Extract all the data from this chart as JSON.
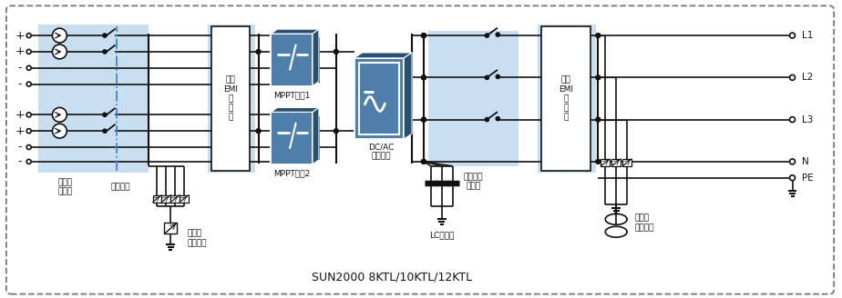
{
  "bg_color": "#ffffff",
  "border_color": "#666666",
  "light_blue": "#a8c8e8",
  "box_blue": "#4d7faa",
  "box_dark": "#2a5070",
  "line_color": "#111111",
  "blue_dash": "#4488cc",
  "title_text": "SUN2000 8KTL/10KTL/12KTL",
  "label_emi_in": "输入\nEMI\n滤\n波\n器",
  "label_emi_out": "输出\nEMI\n滤\n波\n器",
  "label_mppt1": "MPPT电路1",
  "label_mppt2": "MPPT电路2",
  "label_dcac_1": "DC/AC",
  "label_dcac_2": "逆变电路",
  "label_input_current_1": "输入电",
  "label_input_current_2": "流检测",
  "label_dc_switch": "直流开关",
  "label_dc_surge_1": "直流浪",
  "label_dc_surge_2": "涌保护器",
  "label_lc": "LC滤波器",
  "label_out_relay_1": "输出隔离",
  "label_out_relay_2": "继电器",
  "label_ac_surge_1": "交流浪",
  "label_ac_surge_2": "涌保护器",
  "font_size": 6.5,
  "title_font_size": 9
}
